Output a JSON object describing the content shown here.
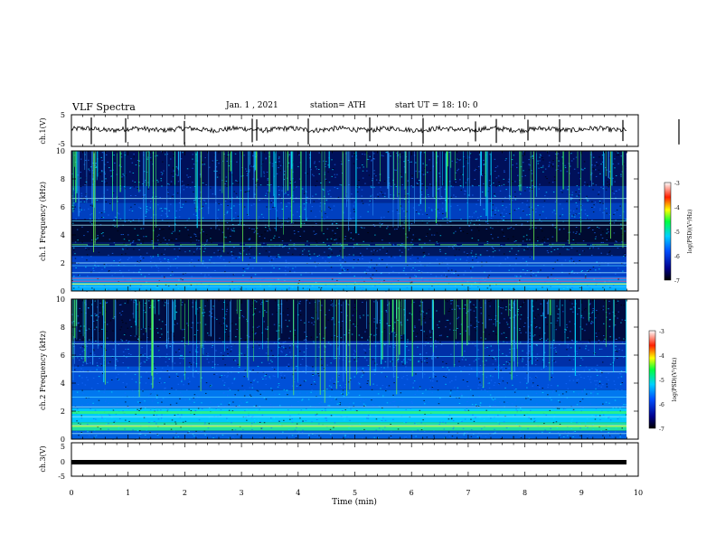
{
  "header": {
    "title": "VLF Spectra",
    "date": "Jan. 1 , 2021",
    "station": "station= ATH",
    "start": "start UT = 18: 10: 0"
  },
  "chart_data": [
    {
      "type": "line",
      "name": "waveform-ch1",
      "ylabel": "ch.1(V)",
      "ylim": [
        -5,
        5
      ],
      "yticks": [
        5,
        -5
      ]
    },
    {
      "type": "heatmap",
      "name": "spectrogram-ch1",
      "ylabel": "ch.1 Frequency (kHz)",
      "ylim": [
        0,
        10
      ],
      "yticks": [
        0,
        2,
        4,
        6,
        8,
        10
      ],
      "colorbar": {
        "label": "log(PSD)(V²/Hz)",
        "range": [
          -7,
          -3
        ],
        "ticks": [
          -3,
          -4,
          -5,
          -6,
          -7
        ]
      }
    },
    {
      "type": "heatmap",
      "name": "spectrogram-ch2",
      "ylabel": "ch.2 Frequency (kHz)",
      "ylim": [
        0,
        10
      ],
      "yticks": [
        0,
        2,
        4,
        6,
        8,
        10
      ],
      "colorbar": {
        "label": "log(PSD)(V²/Hz)",
        "range": [
          -7,
          -3
        ],
        "ticks": [
          -3,
          -4,
          -5,
          -6,
          -7
        ]
      }
    },
    {
      "type": "line",
      "name": "waveform-ch3",
      "ylabel": "ch.3(V)",
      "ylim": [
        -5,
        5
      ],
      "yticks": [
        5,
        0,
        -5
      ]
    }
  ],
  "xaxis": {
    "label": "Time (min)",
    "range": [
      0,
      10
    ],
    "ticks": [
      "0",
      "1",
      "2",
      "3",
      "4",
      "5",
      "6",
      "7",
      "8",
      "9",
      "10"
    ]
  },
  "colors": {
    "axis": "#000000",
    "bg": "#000000",
    "trace": "#000000"
  }
}
